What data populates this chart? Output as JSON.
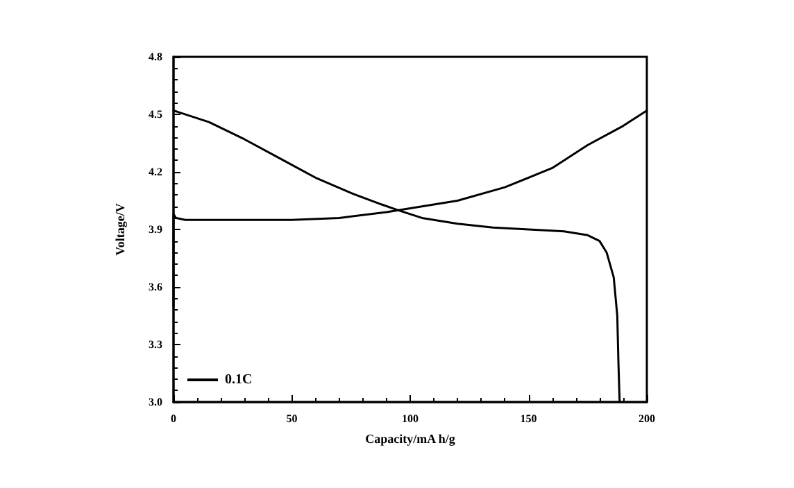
{
  "chart_data": {
    "type": "line",
    "xlabel": "Capacity/mA h/g",
    "ylabel": "Voltage/V",
    "xlim": [
      0,
      200
    ],
    "xticks": [
      0,
      50,
      100,
      150,
      200
    ],
    "ylim": [
      3.0,
      4.8
    ],
    "yticks": [
      {
        "value": 3.0,
        "label": "3.0"
      },
      3.3,
      3.6,
      3.9,
      4.2,
      4.5,
      4.8
    ],
    "grid": false,
    "legend": "bottom left",
    "marker": "none",
    "line_style": "solid",
    "series": [
      {
        "name": "0.1C",
        "color": "#000000",
        "x": [
          0,
          15,
          30,
          45,
          60,
          75,
          88,
          95,
          105,
          120,
          135,
          150,
          165,
          175,
          180,
          183,
          186,
          187.5,
          188,
          188.5
        ],
        "values": [
          4.52,
          4.46,
          4.37,
          4.27,
          4.17,
          4.09,
          4.03,
          4.0,
          3.96,
          3.93,
          3.91,
          3.9,
          3.89,
          3.87,
          3.84,
          3.78,
          3.65,
          3.45,
          3.2,
          3.0
        ]
      },
      {
        "color": "#000000",
        "x": [
          0,
          0,
          1,
          5,
          20,
          50,
          70,
          90,
          100,
          120,
          140,
          160,
          175,
          190,
          200
        ],
        "values": [
          3.5,
          3.98,
          3.96,
          3.95,
          3.95,
          3.95,
          3.96,
          3.99,
          4.01,
          4.05,
          4.12,
          4.22,
          4.34,
          4.44,
          4.52
        ]
      }
    ]
  }
}
